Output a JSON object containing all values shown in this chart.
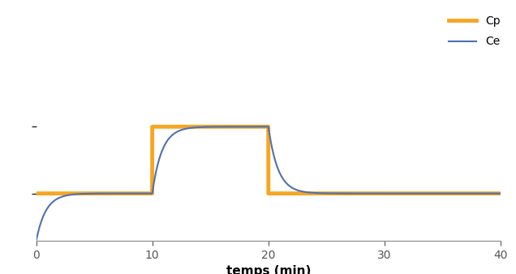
{
  "title": "",
  "xlabel": "temps (min)",
  "ylabel": "",
  "xlim": [
    0,
    40
  ],
  "ylim": [
    0,
    1.0
  ],
  "cp_color": "#F5A623",
  "ce_color": "#5070B0",
  "cp_linewidth": 3.5,
  "ce_linewidth": 1.5,
  "legend_cp": "Cp",
  "legend_ce": "Ce",
  "cp_low": 0.3,
  "cp_high": 0.72,
  "t1": 10,
  "t2": 20,
  "ke0": 1.2,
  "ytick_positions": [
    0.3,
    0.72
  ],
  "xticks": [
    0,
    10,
    20,
    30,
    40
  ]
}
